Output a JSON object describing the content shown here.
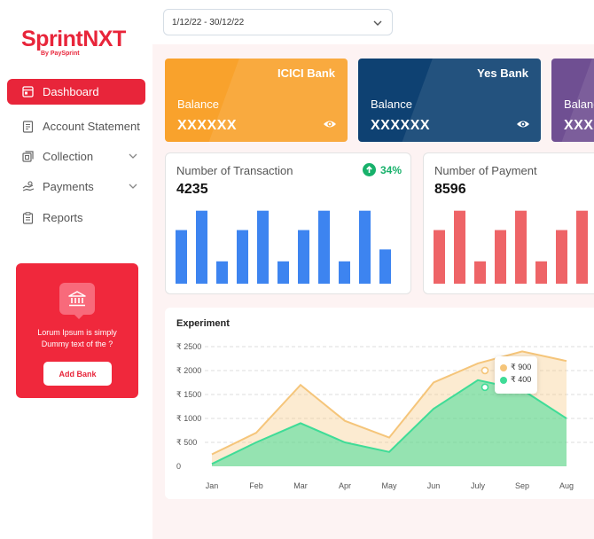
{
  "brand": {
    "name_part1": "Sprint",
    "name_part2": "NXT",
    "tagline": "By PaySprint"
  },
  "sidebar": {
    "items": [
      {
        "label": "Dashboard",
        "icon": "dashboard-icon",
        "active": true
      },
      {
        "label": "Account Statement",
        "icon": "statement-icon"
      },
      {
        "label": "Collection",
        "icon": "collection-icon",
        "expandable": true
      },
      {
        "label": "Payments",
        "icon": "payments-icon",
        "expandable": true
      },
      {
        "label": "Reports",
        "icon": "reports-icon"
      }
    ]
  },
  "promo": {
    "text": "Lorum Ipsum is simply Dummy text of the ?",
    "button_label": "Add Bank",
    "icon": "bank-icon"
  },
  "date_range": {
    "value": "1/12/22 - 30/12/22"
  },
  "bank_cards": [
    {
      "bank": "ICICI Bank",
      "balance_label": "Balance",
      "balance": "XXXXXX",
      "color": "#f9a22c"
    },
    {
      "bank": "Yes Bank",
      "balance_label": "Balance",
      "balance": "XXXXXX",
      "color": "#0e4172"
    },
    {
      "bank": "",
      "balance_label": "Balance",
      "balance": "XXXXXX",
      "color": "#6f4f92"
    }
  ],
  "stats": {
    "transactions": {
      "title": "Number of Transaction",
      "value": "4235",
      "change": "34%",
      "bar_color": "#3d84f0",
      "bar_values": [
        0.72,
        0.98,
        0.3,
        0.72,
        0.98,
        0.3,
        0.72,
        0.98,
        0.3,
        0.98,
        0.46
      ]
    },
    "payments": {
      "title": "Number of Payment",
      "value": "8596",
      "bar_color": "#ee6467",
      "bar_values": [
        0.72,
        0.98,
        0.3,
        0.72,
        0.98,
        0.3,
        0.72,
        0.98
      ]
    }
  },
  "chart_data": {
    "type": "area",
    "title": "Experiment",
    "categories": [
      "Jan",
      "Feb",
      "Mar",
      "Apr",
      "May",
      "Jun",
      "July",
      "Sep",
      "Aug"
    ],
    "y_ticks": [
      "0",
      "₹ 500",
      "₹ 1000",
      "₹ 1500",
      "₹ 2000",
      "₹ 2500"
    ],
    "ylim": [
      0,
      2500
    ],
    "grid": true,
    "series": [
      {
        "values": [
          250,
          700,
          1700,
          950,
          600,
          1750,
          2150,
          2400,
          2200
        ],
        "color": "#f5c57a"
      },
      {
        "values": [
          50,
          500,
          900,
          500,
          300,
          1200,
          1800,
          1600,
          1000
        ],
        "color": "#3fdc97"
      }
    ],
    "tooltip": [
      {
        "label": "₹ 900",
        "color": "#f5c57a"
      },
      {
        "label": "₹ 400",
        "color": "#3fdc97"
      }
    ]
  }
}
